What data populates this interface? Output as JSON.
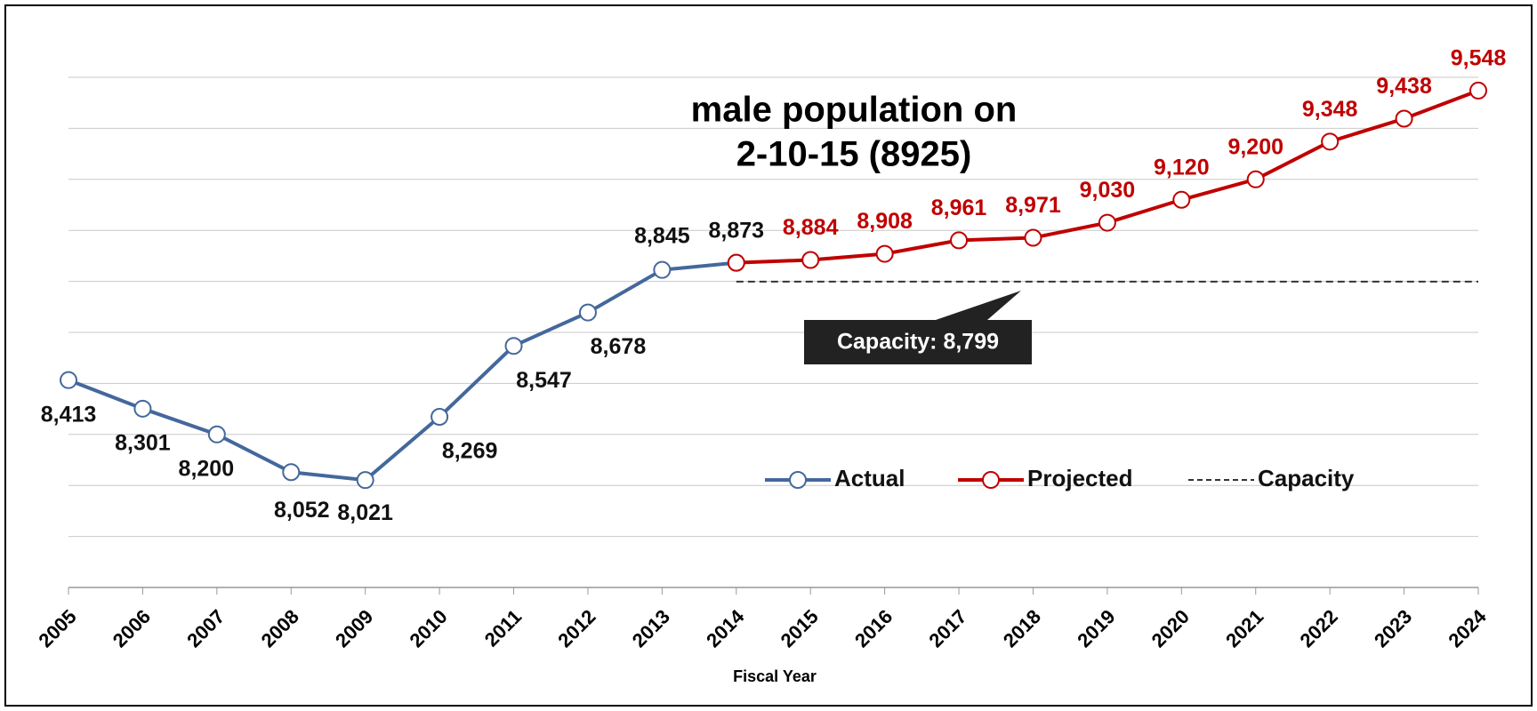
{
  "chart_data": {
    "type": "line",
    "title": [
      "male population on",
      "2-10-15 (8925)"
    ],
    "x_label": "Fiscal Year",
    "categories": [
      "2005",
      "2006",
      "2007",
      "2008",
      "2009",
      "2010",
      "2011",
      "2012",
      "2013",
      "2014",
      "2015",
      "2016",
      "2017",
      "2018",
      "2019",
      "2020",
      "2021",
      "2022",
      "2023",
      "2024"
    ],
    "series": [
      {
        "name": "Actual",
        "color": "#44689c",
        "marker": true,
        "values": [
          8413,
          8301,
          8200,
          8052,
          8021,
          8269,
          8547,
          8678,
          8845,
          8873,
          null,
          null,
          null,
          null,
          null,
          null,
          null,
          null,
          null,
          null
        ],
        "value_labels": [
          "8,413",
          "8,301",
          "8,200",
          "8,052",
          "8,021",
          "8,269",
          "8,547",
          "8,678",
          "8,845",
          "8,873",
          null,
          null,
          null,
          null,
          null,
          null,
          null,
          null,
          null,
          null
        ]
      },
      {
        "name": "Projected",
        "color": "#c00000",
        "marker": true,
        "values": [
          null,
          null,
          null,
          null,
          null,
          null,
          null,
          null,
          null,
          8873,
          8884,
          8908,
          8961,
          8971,
          9030,
          9120,
          9200,
          9348,
          9438,
          9548
        ],
        "value_labels": [
          null,
          null,
          null,
          null,
          null,
          null,
          null,
          null,
          null,
          null,
          "8,884",
          "8,908",
          "8,961",
          "8,971",
          "9,030",
          "9,120",
          "9,200",
          "9,348",
          "9,438",
          "9,548"
        ]
      },
      {
        "name": "Capacity",
        "color": "#333333",
        "marker": false,
        "dashed": true,
        "values": [
          null,
          null,
          null,
          null,
          null,
          null,
          null,
          null,
          null,
          8799,
          8799,
          8799,
          8799,
          8799,
          8799,
          8799,
          8799,
          8799,
          8799,
          8799
        ]
      }
    ],
    "annotation": "Capacity: 8,799",
    "ylim": [
      7600,
      9600
    ],
    "yticks": [
      7600,
      7800,
      8000,
      8200,
      8400,
      8600,
      8800,
      9000,
      9200,
      9400,
      9600
    ],
    "grid": true,
    "legend": "bottom"
  }
}
